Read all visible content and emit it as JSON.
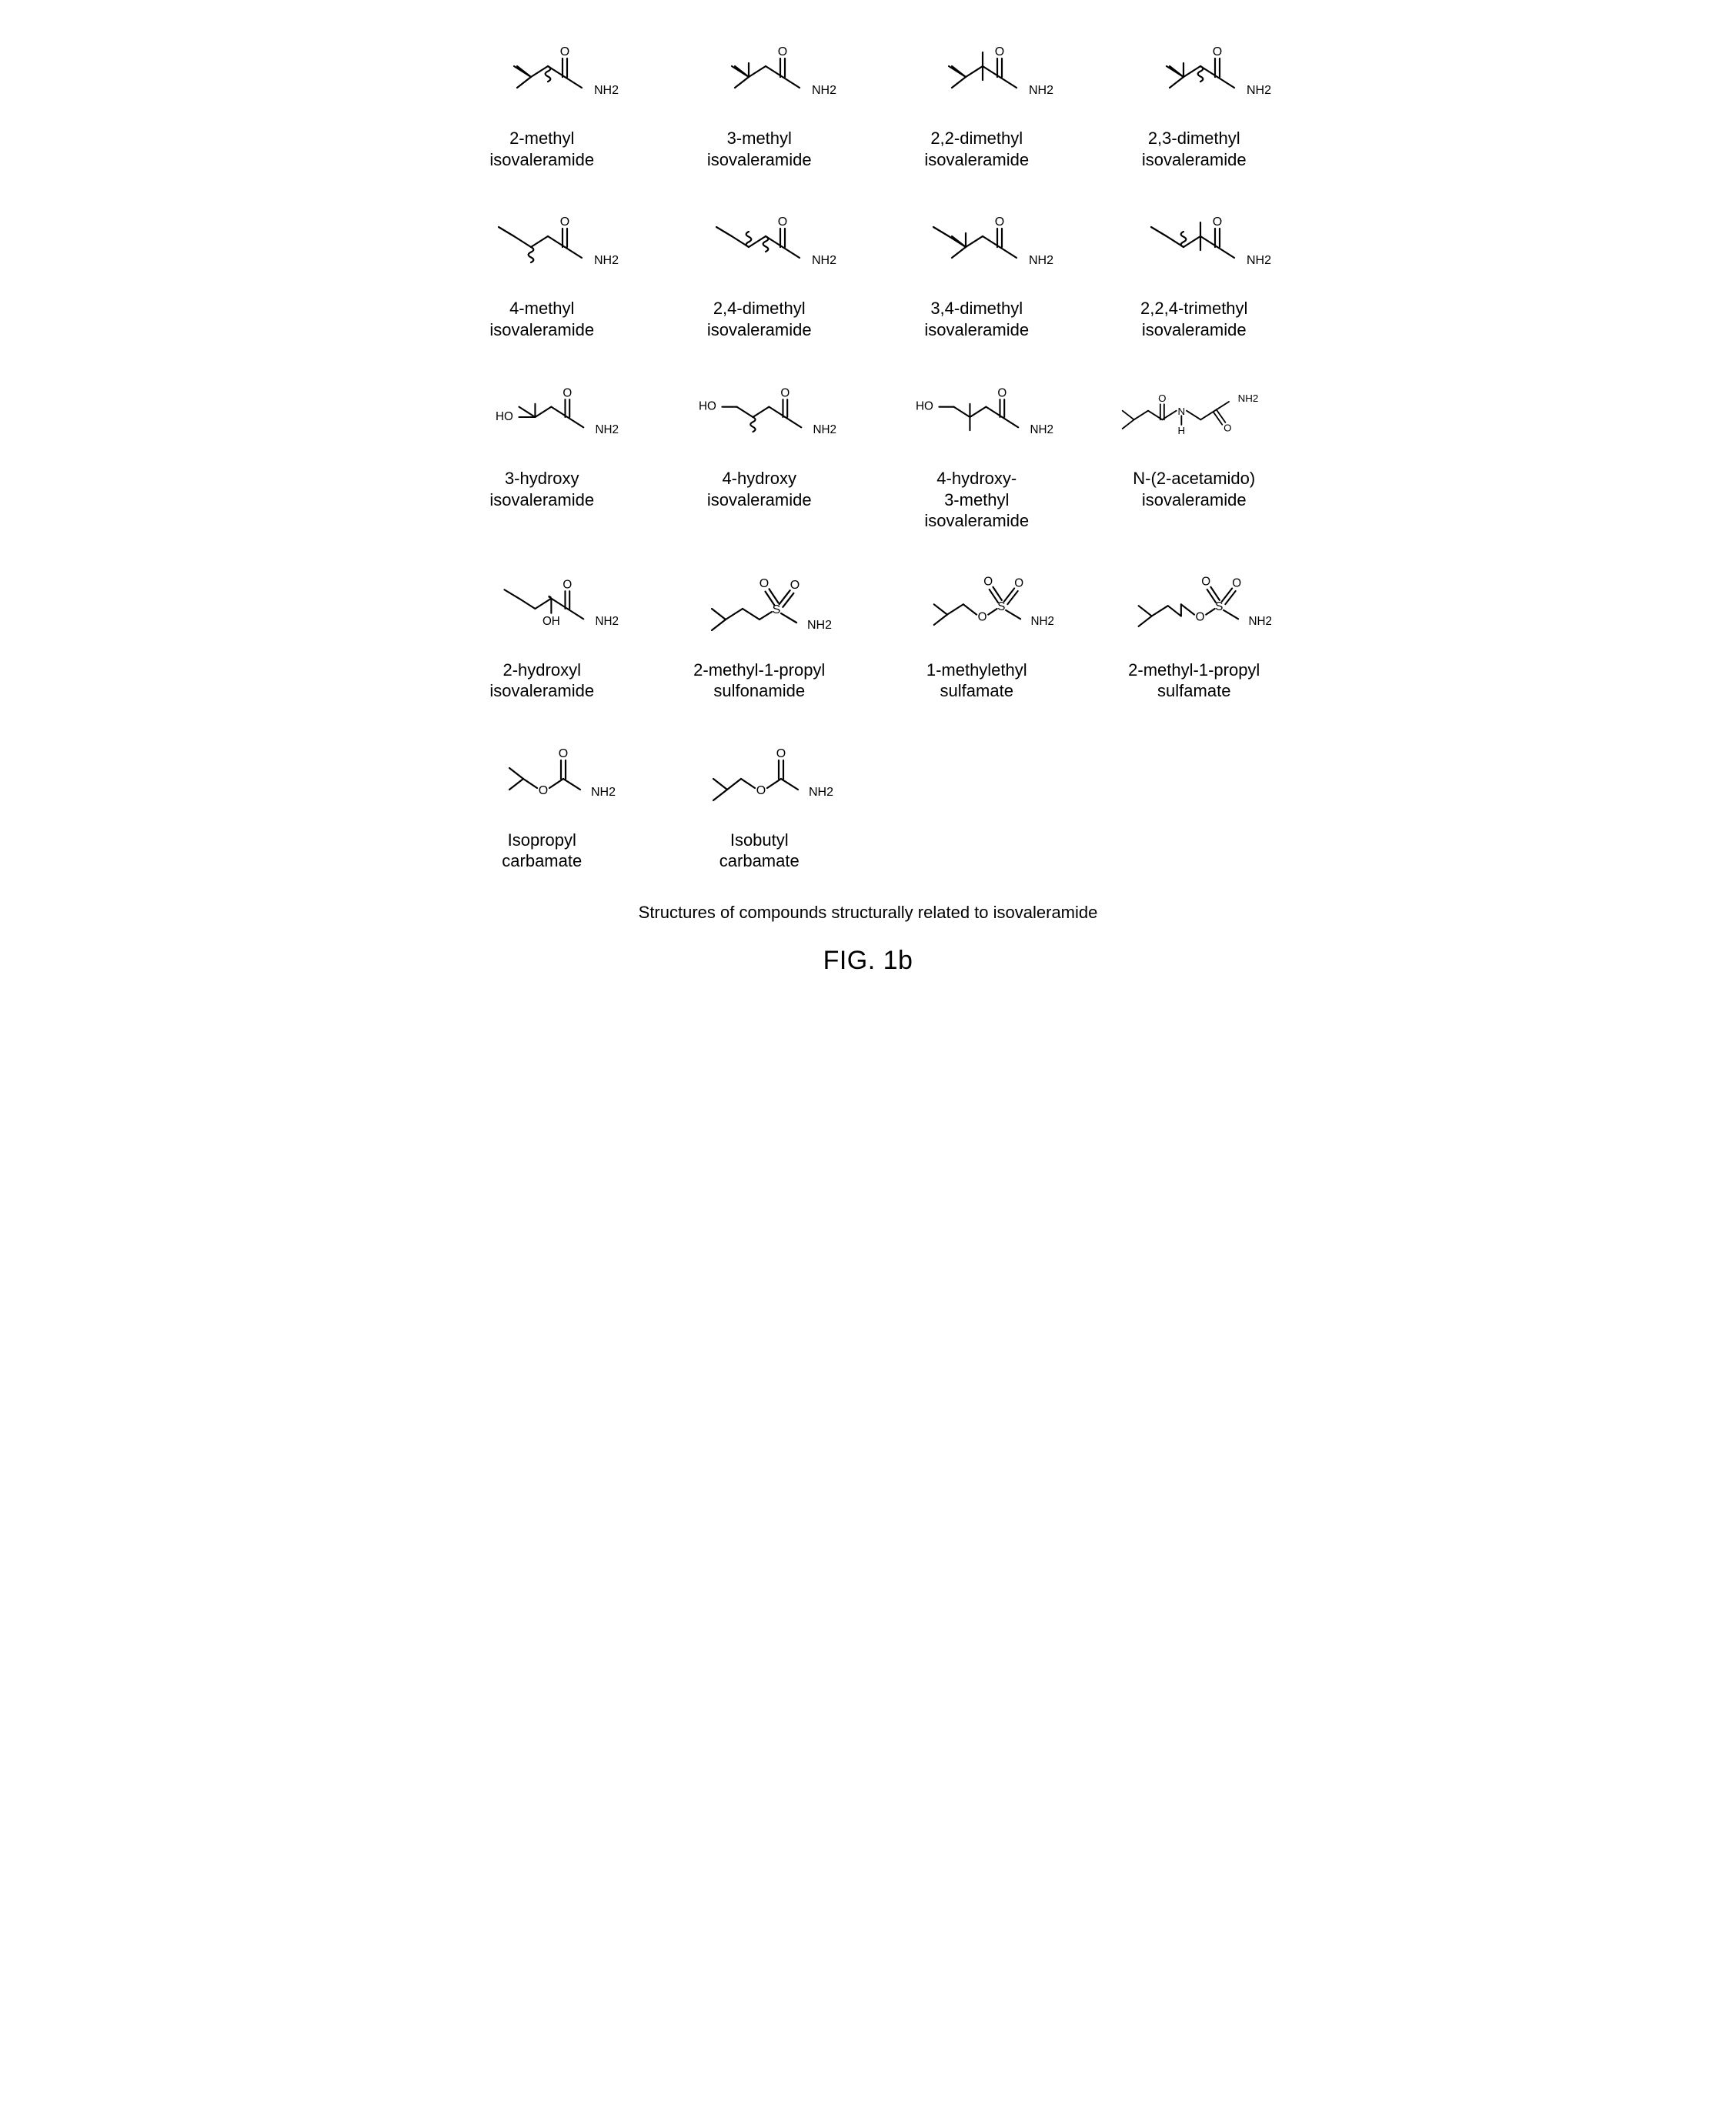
{
  "figure": {
    "caption": "Structures of compounds structurally related to isovaleramide",
    "number": "FIG. 1b",
    "stroke_color": "#000000",
    "stroke_width": 2.2,
    "atom_label_fontsize": 16,
    "compound_label_fontsize": 22,
    "caption_fontsize": 22,
    "fignum_fontsize": 34,
    "background_color": "#ffffff",
    "grid_cols": 4,
    "grid_rows": 5
  },
  "compounds": [
    {
      "name": "2-methyl\nisovaleramide",
      "struct_type": "amide_methyl",
      "variant": "2me"
    },
    {
      "name": "3-methyl\nisovaleramide",
      "struct_type": "amide_methyl",
      "variant": "3me"
    },
    {
      "name": "2,2-dimethyl\nisovaleramide",
      "struct_type": "amide_methyl",
      "variant": "22"
    },
    {
      "name": "2,3-dimethyl\nisovaleramide",
      "struct_type": "amide_methyl",
      "variant": "23"
    },
    {
      "name": "4-methyl\nisovaleramide",
      "struct_type": "amide_methyl",
      "variant": "4me"
    },
    {
      "name": "2,4-dimethyl\nisovaleramide",
      "struct_type": "amide_methyl",
      "variant": "24"
    },
    {
      "name": "3,4-dimethyl\nisovaleramide",
      "struct_type": "amide_methyl",
      "variant": "34"
    },
    {
      "name": "2,2,4-trimethyl\nisovaleramide",
      "struct_type": "amide_methyl",
      "variant": "224"
    },
    {
      "name": "3-hydroxy\nisovaleramide",
      "struct_type": "amide_hydroxy",
      "variant": "3oh"
    },
    {
      "name": "4-hydroxy\nisovaleramide",
      "struct_type": "amide_hydroxy",
      "variant": "4oh"
    },
    {
      "name": "4-hydroxy-\n3-methyl\nisovaleramide",
      "struct_type": "amide_hydroxy",
      "variant": "4oh3me"
    },
    {
      "name": "N-(2-acetamido)\nisovaleramide",
      "struct_type": "n_acetamido",
      "variant": "nacet"
    },
    {
      "name": "2-hydroxyl\nisovaleramide",
      "struct_type": "amide_hydroxy",
      "variant": "2oh"
    },
    {
      "name": "2-methyl-1-propyl\nsulfonamide",
      "struct_type": "sulfonamide",
      "variant": "iso"
    },
    {
      "name": "1-methylethyl\nsulfamate",
      "struct_type": "sulfamate",
      "variant": "ipr"
    },
    {
      "name": "2-methyl-1-propyl\nsulfamate",
      "struct_type": "sulfamate",
      "variant": "ibu"
    },
    {
      "name": "Isopropyl\ncarbamate",
      "struct_type": "carbamate",
      "variant": "ipr"
    },
    {
      "name": "Isobutyl\ncarbamate",
      "struct_type": "carbamate",
      "variant": "ibu"
    }
  ]
}
